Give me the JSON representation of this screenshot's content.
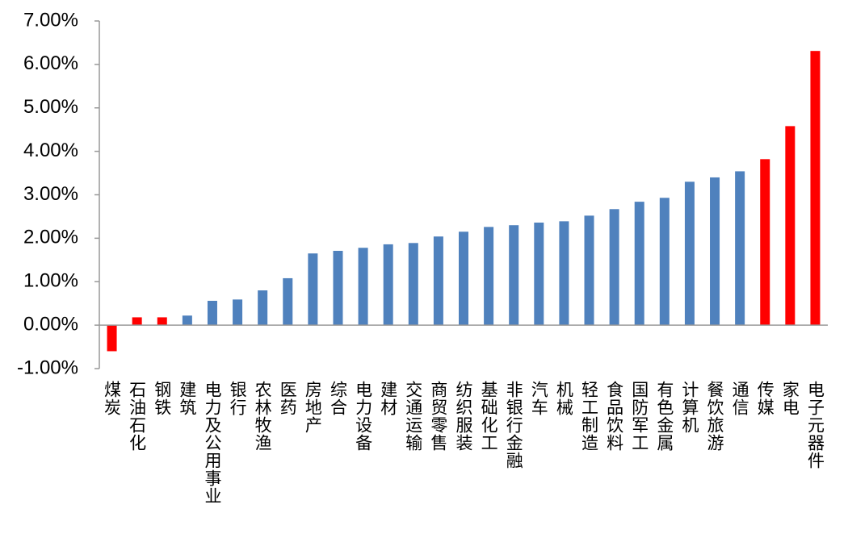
{
  "chart_data": {
    "type": "bar",
    "categories": [
      "煤炭",
      "石油石化",
      "钢铁",
      "建筑",
      "电力及公用事业",
      "银行",
      "农林牧渔",
      "医药",
      "房地产",
      "综合",
      "电力设备",
      "建材",
      "交通运输",
      "商贸零售",
      "纺织服装",
      "基础化工",
      "非银行金融",
      "汽车",
      "机械",
      "轻工制造",
      "食品饮料",
      "国防军工",
      "有色金属",
      "计算机",
      "餐饮旅游",
      "通信",
      "传媒",
      "家电",
      "电子元器件"
    ],
    "values": [
      -0.6,
      0.18,
      0.18,
      0.22,
      0.56,
      0.59,
      0.8,
      1.08,
      1.65,
      1.71,
      1.78,
      1.86,
      1.89,
      2.04,
      2.15,
      2.26,
      2.3,
      2.36,
      2.39,
      2.52,
      2.67,
      2.84,
      2.93,
      3.3,
      3.4,
      3.54,
      3.82,
      4.58,
      6.31
    ],
    "colors": [
      "#ff0000",
      "#ff0000",
      "#ff0000",
      "#4f81bd",
      "#4f81bd",
      "#4f81bd",
      "#4f81bd",
      "#4f81bd",
      "#4f81bd",
      "#4f81bd",
      "#4f81bd",
      "#4f81bd",
      "#4f81bd",
      "#4f81bd",
      "#4f81bd",
      "#4f81bd",
      "#4f81bd",
      "#4f81bd",
      "#4f81bd",
      "#4f81bd",
      "#4f81bd",
      "#4f81bd",
      "#4f81bd",
      "#4f81bd",
      "#4f81bd",
      "#4f81bd",
      "#ff0000",
      "#ff0000",
      "#ff0000"
    ],
    "ylim": [
      -1,
      7
    ],
    "yticks": [
      {
        "value": -1,
        "label": "-1.00%"
      },
      {
        "value": 0,
        "label": "0.00%"
      },
      {
        "value": 1,
        "label": "1.00%"
      },
      {
        "value": 2,
        "label": "2.00%"
      },
      {
        "value": 3,
        "label": "3.00%"
      },
      {
        "value": 4,
        "label": "4.00%"
      },
      {
        "value": 5,
        "label": "5.00%"
      },
      {
        "value": 6,
        "label": "6.00%"
      },
      {
        "value": 7,
        "label": "7.00%"
      }
    ],
    "grid": false
  }
}
